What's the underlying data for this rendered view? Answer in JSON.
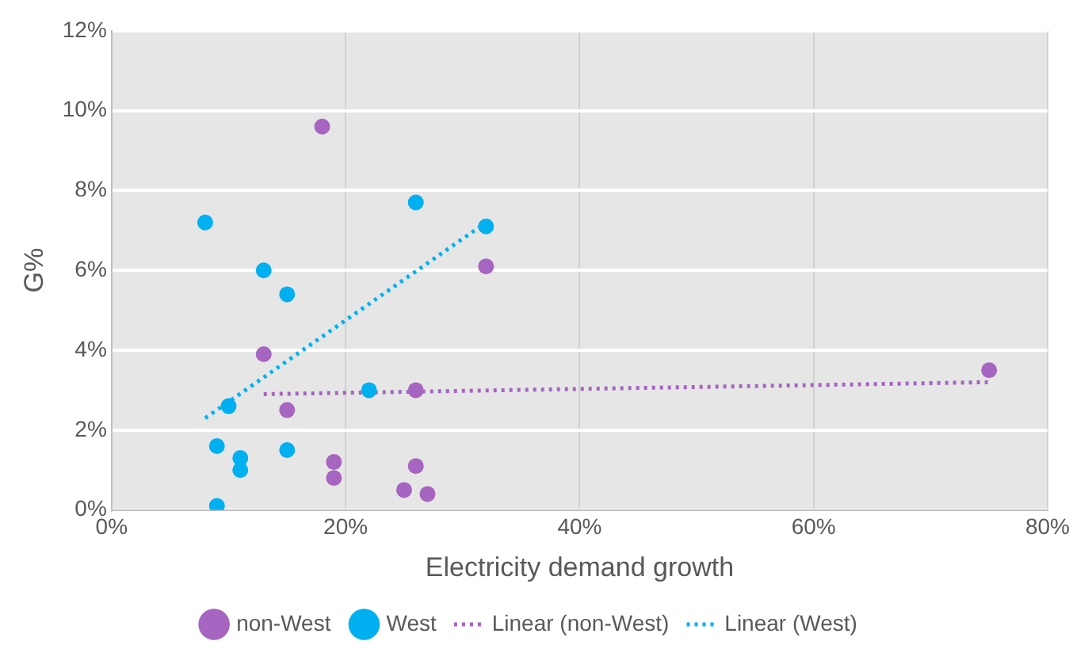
{
  "chart_data": {
    "type": "scatter",
    "xlabel": "Electricity demand growth",
    "ylabel": "G%",
    "xlim": [
      0,
      80
    ],
    "xticks": [
      {
        "value": 0,
        "label": "0%"
      },
      {
        "value": 20,
        "label": "20%"
      },
      {
        "value": 40,
        "label": "40%"
      },
      {
        "value": 60,
        "label": "60%"
      },
      {
        "value": 80,
        "label": "80%"
      }
    ],
    "ylim": [
      0,
      12
    ],
    "yticks": [
      {
        "value": 0,
        "label": "0%"
      },
      {
        "value": 2,
        "label": "2%"
      },
      {
        "value": 4,
        "label": "4%"
      },
      {
        "value": 6,
        "label": "6%"
      },
      {
        "value": 8,
        "label": "8%"
      },
      {
        "value": 10,
        "label": "10%"
      },
      {
        "value": 12,
        "label": "12%"
      }
    ],
    "grid": true,
    "legend": "bottom",
    "marker": "circle",
    "series": [
      {
        "name": "non-West",
        "color": "#a665c0",
        "x": [
          18,
          32,
          13,
          26,
          15,
          19,
          19,
          26,
          25,
          27,
          75
        ],
        "values": [
          9.6,
          6.1,
          3.9,
          3.0,
          2.5,
          1.2,
          0.8,
          1.1,
          0.5,
          0.4,
          3.5
        ]
      },
      {
        "name": "West",
        "color": "#00b0f0",
        "x": [
          8,
          26,
          32,
          13,
          15,
          22,
          10,
          9,
          11,
          11,
          15,
          9
        ],
        "values": [
          7.2,
          7.7,
          7.1,
          6.0,
          5.4,
          3.0,
          2.6,
          1.6,
          1.3,
          1.0,
          1.5,
          0.1
        ]
      },
      {
        "name": "Linear (non-West)",
        "type": "line",
        "color": "#a665c0",
        "line_style": "dotted",
        "marker": "none",
        "x": [
          13,
          75
        ],
        "values": [
          2.9,
          3.2
        ]
      },
      {
        "name": "Linear (West)",
        "type": "line",
        "color": "#00b0f0",
        "line_style": "dotted",
        "marker": "none",
        "x": [
          8,
          32
        ],
        "values": [
          2.3,
          7.2
        ]
      }
    ]
  }
}
